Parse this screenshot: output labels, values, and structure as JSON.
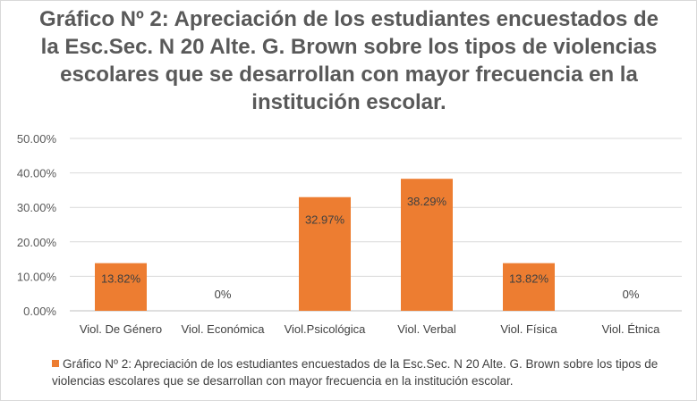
{
  "chart_data": {
    "type": "bar",
    "title": "Gráfico Nº 2: Apreciación de los estudiantes encuestados de la Esc.Sec. N 20 Alte. G. Brown sobre los tipos de violencias escolares que se desarrollan con mayor frecuencia en la institución escolar.",
    "categories": [
      "Viol. De Género",
      "Viol. Económica",
      "Viol.Psicológica",
      "Viol. Verbal",
      "Viol. Física",
      "Viol. Étnica"
    ],
    "series": [
      {
        "name": "Gráfico Nº 2: Apreciación de los estudiantes encuestados de la Esc.Sec. N 20 Alte. G. Brown sobre los tipos de violencias escolares que se desarrollan con mayor frecuencia en la institución escolar.",
        "values": [
          13.82,
          0,
          32.97,
          38.29,
          13.82,
          0
        ],
        "data_labels": [
          "13.82%",
          "0%",
          "32.97%",
          "38.29%",
          "13.82%",
          "0%"
        ]
      }
    ],
    "yticks": [
      "0.00%",
      "10.00%",
      "20.00%",
      "30.00%",
      "40.00%",
      "50.00%"
    ],
    "ylim": [
      0,
      50
    ],
    "xlabel": "",
    "ylabel": "",
    "grid": true,
    "legend_position": "bottom",
    "bar_color": "#ed7d31"
  }
}
